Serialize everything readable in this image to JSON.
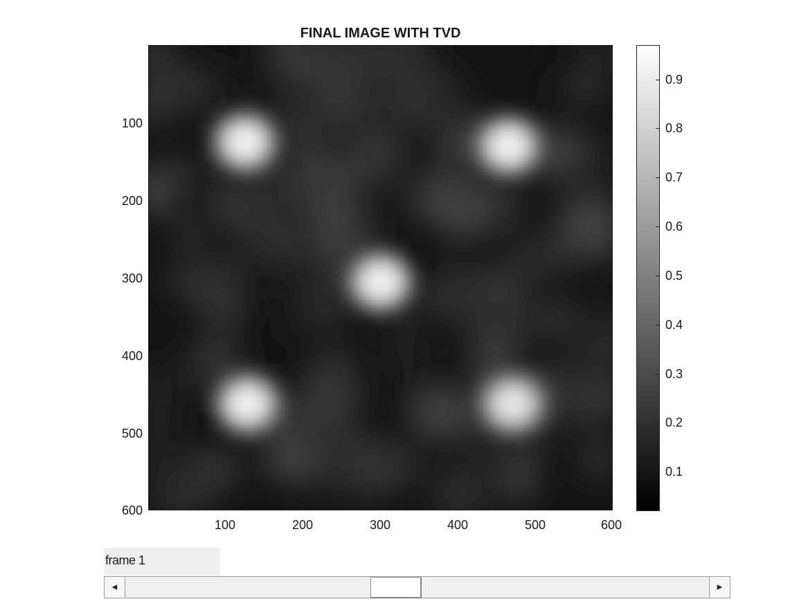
{
  "figure": {
    "title": "FINAL IMAGE WITH TVD",
    "y_ticks": [
      "100",
      "200",
      "300",
      "400",
      "500",
      "600"
    ],
    "x_ticks": [
      "100",
      "200",
      "300",
      "400",
      "500",
      "600"
    ],
    "colorbar_ticks": [
      "0.9",
      "0.8",
      "0.7",
      "0.6",
      "0.5",
      "0.4",
      "0.3",
      "0.2",
      "0.1"
    ],
    "colormap": "gray",
    "colors": {
      "background": "#ffffff",
      "image_dark": "#111111",
      "image_bright": "#ffffff"
    }
  },
  "chart_data": {
    "type": "heatmap",
    "title": "FINAL IMAGE WITH TVD",
    "xlim": [
      1,
      600
    ],
    "ylim": [
      1,
      600
    ],
    "x_ticks": [
      100,
      200,
      300,
      400,
      500,
      600
    ],
    "y_ticks": [
      100,
      200,
      300,
      400,
      500,
      600
    ],
    "colorbar_range": [
      0.02,
      0.97
    ],
    "colorbar_ticks": [
      0.1,
      0.2,
      0.3,
      0.4,
      0.5,
      0.6,
      0.7,
      0.8,
      0.9
    ],
    "bright_spots": [
      {
        "name": "spot-top-left",
        "x": 125,
        "y": 125,
        "value": 0.95
      },
      {
        "name": "spot-top-right",
        "x": 465,
        "y": 130,
        "value": 0.95
      },
      {
        "name": "spot-center",
        "x": 300,
        "y": 305,
        "value": 0.95
      },
      {
        "name": "spot-bottom-left",
        "x": 128,
        "y": 462,
        "value": 0.95
      },
      {
        "name": "spot-bottom-right",
        "x": 470,
        "y": 462,
        "value": 0.9
      }
    ]
  },
  "controls": {
    "frame_label": "frame 1",
    "slider_left_arrow": "◀",
    "slider_right_arrow": "▶",
    "slider_position_fraction": 0.46
  }
}
